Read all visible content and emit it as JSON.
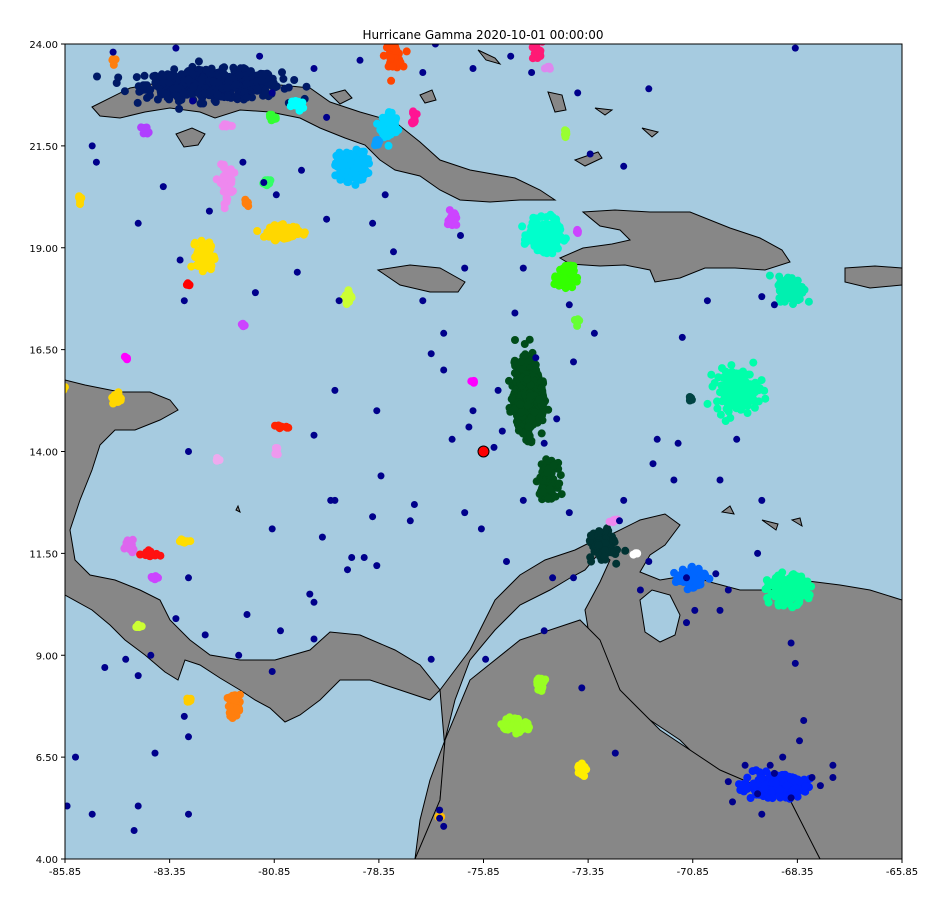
{
  "title": "Hurricane Gamma 2020-10-01 00:00:00",
  "colors": {
    "ocean": "#a6cbe0",
    "land": "#878787",
    "coast": "#000000",
    "scatter": "#00008b",
    "center_marker": "#ff0000"
  },
  "chart_data": {
    "type": "scatter",
    "title": "Hurricane Gamma 2020-10-01 00:00:00",
    "xlim": [
      -85.85,
      -65.85
    ],
    "ylim": [
      4.0,
      24.0
    ],
    "x_ticks": [
      "-85.85",
      "-83.35",
      "-80.85",
      "-78.35",
      "-75.85",
      "-73.35",
      "-70.85",
      "-68.35",
      "-65.85"
    ],
    "y_ticks": [
      "4.00",
      "6.50",
      "9.00",
      "11.50",
      "14.00",
      "16.50",
      "19.00",
      "21.50",
      "24.00"
    ],
    "hurricane_center": {
      "lon": -75.85,
      "lat": 14.0,
      "color": "#ff0000"
    },
    "scatter_points": [
      [
        -84.7,
        23.8
      ],
      [
        -83.2,
        23.9
      ],
      [
        -81.2,
        23.7
      ],
      [
        -79.6,
        22.2
      ],
      [
        -77.3,
        23.3
      ],
      [
        -76.1,
        23.4
      ],
      [
        -73.6,
        22.8
      ],
      [
        -71.9,
        22.9
      ],
      [
        -73.3,
        21.3
      ],
      [
        -72.5,
        21.0
      ],
      [
        -85.2,
        21.5
      ],
      [
        -85.1,
        21.1
      ],
      [
        -84.1,
        19.6
      ],
      [
        -83.1,
        18.7
      ],
      [
        -82.4,
        19.9
      ],
      [
        -80.8,
        20.3
      ],
      [
        -80.2,
        20.9
      ],
      [
        -79.6,
        19.7
      ],
      [
        -81.6,
        21.1
      ],
      [
        -81.1,
        20.6
      ],
      [
        -78.5,
        19.6
      ],
      [
        -78.2,
        20.3
      ],
      [
        -78.0,
        18.9
      ],
      [
        -76.4,
        19.3
      ],
      [
        -76.3,
        18.5
      ],
      [
        -77.3,
        17.7
      ],
      [
        -79.3,
        17.7
      ],
      [
        -80.3,
        18.4
      ],
      [
        -81.3,
        17.9
      ],
      [
        -83.0,
        17.7
      ],
      [
        -79.4,
        15.5
      ],
      [
        -78.4,
        15.0
      ],
      [
        -77.1,
        16.4
      ],
      [
        -78.3,
        13.4
      ],
      [
        -77.5,
        12.7
      ],
      [
        -78.5,
        12.4
      ],
      [
        -79.5,
        12.8
      ],
      [
        -79.7,
        11.9
      ],
      [
        -80.9,
        12.1
      ],
      [
        -77.6,
        12.3
      ],
      [
        -76.1,
        15.0
      ],
      [
        -75.5,
        15.5
      ],
      [
        -76.2,
        14.6
      ],
      [
        -76.6,
        14.3
      ],
      [
        -75.4,
        14.5
      ],
      [
        -75.6,
        14.1
      ],
      [
        -74.4,
        14.2
      ],
      [
        -74.1,
        14.8
      ],
      [
        -73.7,
        16.2
      ],
      [
        -74.6,
        16.3
      ],
      [
        -76.8,
        16.0
      ],
      [
        -76.8,
        16.9
      ],
      [
        -75.1,
        17.4
      ],
      [
        -74.9,
        18.5
      ],
      [
        -73.8,
        17.6
      ],
      [
        -73.2,
        16.9
      ],
      [
        -71.1,
        16.8
      ],
      [
        -70.5,
        17.7
      ],
      [
        -69.2,
        17.8
      ],
      [
        -68.9,
        17.6
      ],
      [
        -71.7,
        14.3
      ],
      [
        -69.8,
        14.3
      ],
      [
        -71.2,
        14.2
      ],
      [
        -70.2,
        13.3
      ],
      [
        -71.8,
        13.7
      ],
      [
        -71.3,
        13.3
      ],
      [
        -72.5,
        12.8
      ],
      [
        -72.6,
        12.3
      ],
      [
        -73.8,
        12.5
      ],
      [
        -69.2,
        12.8
      ],
      [
        -79.9,
        14.4
      ],
      [
        -82.9,
        14.0
      ],
      [
        -82.9,
        10.9
      ],
      [
        -82.5,
        9.5
      ],
      [
        -81.7,
        9.0
      ],
      [
        -81.5,
        10.0
      ],
      [
        -80.7,
        9.6
      ],
      [
        -80.0,
        10.5
      ],
      [
        -79.4,
        12.8
      ],
      [
        -79.1,
        11.1
      ],
      [
        -78.7,
        11.4
      ],
      [
        -78.4,
        11.2
      ],
      [
        -79.0,
        11.4
      ],
      [
        -79.9,
        10.3
      ],
      [
        -79.9,
        9.4
      ],
      [
        -80.9,
        8.6
      ],
      [
        -84.9,
        8.7
      ],
      [
        -84.1,
        8.5
      ],
      [
        -83.2,
        9.9
      ],
      [
        -83.8,
        9.0
      ],
      [
        -84.4,
        8.9
      ],
      [
        -83.0,
        7.5
      ],
      [
        -82.9,
        7.0
      ],
      [
        -83.7,
        6.6
      ],
      [
        -85.6,
        6.5
      ],
      [
        -85.8,
        5.3
      ],
      [
        -85.2,
        5.1
      ],
      [
        -84.1,
        5.3
      ],
      [
        -84.2,
        4.7
      ],
      [
        -82.9,
        5.1
      ],
      [
        -77.1,
        8.9
      ],
      [
        -75.8,
        8.9
      ],
      [
        -74.9,
        12.8
      ],
      [
        -75.3,
        11.3
      ],
      [
        -74.2,
        10.9
      ],
      [
        -73.7,
        10.9
      ],
      [
        -74.4,
        9.6
      ],
      [
        -73.5,
        8.2
      ],
      [
        -72.7,
        6.6
      ],
      [
        -72.1,
        10.6
      ],
      [
        -70.8,
        10.1
      ],
      [
        -71.0,
        9.8
      ],
      [
        -70.2,
        10.1
      ],
      [
        -71.0,
        10.9
      ],
      [
        -70.3,
        11.0
      ],
      [
        -69.3,
        11.5
      ],
      [
        -70.0,
        10.6
      ],
      [
        -71.9,
        11.3
      ],
      [
        -68.5,
        9.3
      ],
      [
        -68.4,
        8.8
      ],
      [
        -68.2,
        7.4
      ],
      [
        -68.3,
        6.9
      ],
      [
        -68.7,
        6.5
      ],
      [
        -68.9,
        6.1
      ],
      [
        -69.6,
        6.3
      ],
      [
        -70.0,
        5.9
      ],
      [
        -68.0,
        6.0
      ],
      [
        -67.8,
        5.8
      ],
      [
        -69.3,
        5.6
      ],
      [
        -69.9,
        5.4
      ],
      [
        -67.5,
        6.0
      ],
      [
        -67.5,
        6.3
      ],
      [
        -69.2,
        5.1
      ],
      [
        -68.5,
        5.5
      ],
      [
        -69.0,
        6.3
      ],
      [
        -76.9,
        5.0
      ],
      [
        -76.9,
        5.2
      ],
      [
        -76.8,
        4.8
      ],
      [
        -75.9,
        12.1
      ],
      [
        -76.3,
        12.5
      ],
      [
        -85.9,
        24.1
      ],
      [
        -68.4,
        23.9
      ],
      [
        -77.0,
        24.0
      ],
      [
        -75.2,
        23.7
      ],
      [
        -74.7,
        23.3
      ],
      [
        -83.5,
        20.5
      ],
      [
        -82.8,
        22.6
      ],
      [
        -80.9,
        22.8
      ],
      [
        -79.9,
        23.4
      ],
      [
        -78.8,
        23.6
      ]
    ],
    "clusters": [
      {
        "color": "#001a66",
        "lon": -82.3,
        "lat": 23.0,
        "sx": 1.6,
        "sy": 0.35,
        "n": 520
      },
      {
        "color": "#ff4500",
        "lon": -78.0,
        "lat": 23.7,
        "sx": 0.2,
        "sy": 0.3,
        "n": 40
      },
      {
        "color": "#ff7f0e",
        "lon": -84.7,
        "lat": 23.6,
        "sx": 0.05,
        "sy": 0.1,
        "n": 6
      },
      {
        "color": "#ff1a75",
        "lon": -74.6,
        "lat": 23.8,
        "sx": 0.15,
        "sy": 0.25,
        "n": 20
      },
      {
        "color": "#dd88ee",
        "lon": -74.3,
        "lat": 23.4,
        "sx": 0.08,
        "sy": 0.05,
        "n": 6
      },
      {
        "color": "#00ffff",
        "lon": -80.3,
        "lat": 22.5,
        "sx": 0.15,
        "sy": 0.15,
        "n": 20
      },
      {
        "color": "#33ff33",
        "lon": -80.9,
        "lat": 22.2,
        "sx": 0.1,
        "sy": 0.15,
        "n": 15
      },
      {
        "color": "#00d5ff",
        "lon": -78.1,
        "lat": 22.0,
        "sx": 0.2,
        "sy": 0.35,
        "n": 70
      },
      {
        "color": "#0aa0ff",
        "lon": -78.4,
        "lat": 21.6,
        "sx": 0.05,
        "sy": 0.1,
        "n": 10
      },
      {
        "color": "#ff1493",
        "lon": -77.5,
        "lat": 22.2,
        "sx": 0.05,
        "sy": 0.2,
        "n": 10
      },
      {
        "color": "#b040ff",
        "lon": -83.9,
        "lat": 21.9,
        "sx": 0.1,
        "sy": 0.1,
        "n": 10
      },
      {
        "color": "#ee88ee",
        "lon": -82.0,
        "lat": 22.0,
        "sx": 0.15,
        "sy": 0.05,
        "n": 6
      },
      {
        "color": "#99ff33",
        "lon": -73.9,
        "lat": 21.8,
        "sx": 0.05,
        "sy": 0.15,
        "n": 8
      },
      {
        "color": "#00bfff",
        "lon": -79.0,
        "lat": 21.0,
        "sx": 0.35,
        "sy": 0.35,
        "n": 220
      },
      {
        "color": "#ffd700",
        "lon": -85.5,
        "lat": 20.2,
        "sx": 0.05,
        "sy": 0.15,
        "n": 6
      },
      {
        "color": "#ee88ee",
        "lon": -82.0,
        "lat": 20.6,
        "sx": 0.15,
        "sy": 0.4,
        "n": 60
      },
      {
        "color": "#ff7f0e",
        "lon": -81.5,
        "lat": 20.1,
        "sx": 0.05,
        "sy": 0.1,
        "n": 6
      },
      {
        "color": "#33ff66",
        "lon": -81.0,
        "lat": 20.6,
        "sx": 0.1,
        "sy": 0.08,
        "n": 20
      },
      {
        "color": "#ffd700",
        "lon": -80.6,
        "lat": 19.4,
        "sx": 0.35,
        "sy": 0.15,
        "n": 120
      },
      {
        "color": "#cc44ff",
        "lon": -76.6,
        "lat": 19.7,
        "sx": 0.1,
        "sy": 0.2,
        "n": 25
      },
      {
        "color": "#00ffcc",
        "lon": -74.4,
        "lat": 19.3,
        "sx": 0.35,
        "sy": 0.35,
        "n": 260
      },
      {
        "color": "#cc44ff",
        "lon": -73.6,
        "lat": 19.4,
        "sx": 0.05,
        "sy": 0.05,
        "n": 5
      },
      {
        "color": "#33ff00",
        "lon": -73.9,
        "lat": 18.3,
        "sx": 0.2,
        "sy": 0.25,
        "n": 100
      },
      {
        "color": "#ffe000",
        "lon": -82.5,
        "lat": 18.8,
        "sx": 0.2,
        "sy": 0.35,
        "n": 90
      },
      {
        "color": "#ff0000",
        "lon": -82.9,
        "lat": 18.1,
        "sx": 0.05,
        "sy": 0.05,
        "n": 4
      },
      {
        "color": "#ccff33",
        "lon": -79.1,
        "lat": 17.8,
        "sx": 0.1,
        "sy": 0.15,
        "n": 20
      },
      {
        "color": "#cc44ff",
        "lon": -81.6,
        "lat": 17.1,
        "sx": 0.05,
        "sy": 0.05,
        "n": 6
      },
      {
        "color": "#66ff33",
        "lon": -73.6,
        "lat": 17.2,
        "sx": 0.05,
        "sy": 0.1,
        "n": 6
      },
      {
        "color": "#00f0b0",
        "lon": -68.5,
        "lat": 18.0,
        "sx": 0.3,
        "sy": 0.3,
        "n": 160
      },
      {
        "color": "#00ffaa",
        "lon": -69.8,
        "lat": 15.5,
        "sx": 0.5,
        "sy": 0.5,
        "n": 180
      },
      {
        "color": "#ff00ff",
        "lon": -84.4,
        "lat": 16.3,
        "sx": 0.05,
        "sy": 0.05,
        "n": 4
      },
      {
        "color": "#ffd700",
        "lon": -84.6,
        "lat": 15.3,
        "sx": 0.1,
        "sy": 0.15,
        "n": 30
      },
      {
        "color": "#ffd700",
        "lon": -85.9,
        "lat": 15.6,
        "sx": 0.05,
        "sy": 0.1,
        "n": 5
      },
      {
        "color": "#ff00ff",
        "lon": -76.1,
        "lat": 15.7,
        "sx": 0.05,
        "sy": 0.05,
        "n": 4
      },
      {
        "color": "#ff2200",
        "lon": -80.7,
        "lat": 14.6,
        "sx": 0.15,
        "sy": 0.05,
        "n": 10
      },
      {
        "color": "#ee99ee",
        "lon": -80.8,
        "lat": 14.0,
        "sx": 0.05,
        "sy": 0.1,
        "n": 6
      },
      {
        "color": "#eeaaee",
        "lon": -82.2,
        "lat": 13.8,
        "sx": 0.05,
        "sy": 0.05,
        "n": 4
      },
      {
        "color": "#004d1a",
        "lon": -74.8,
        "lat": 15.4,
        "sx": 0.3,
        "sy": 0.75,
        "n": 900
      },
      {
        "color": "#004d1a",
        "lon": -74.3,
        "lat": 13.3,
        "sx": 0.2,
        "sy": 0.4,
        "n": 140
      },
      {
        "color": "#003333",
        "lon": -73.0,
        "lat": 11.7,
        "sx": 0.25,
        "sy": 0.3,
        "n": 200
      },
      {
        "color": "#004444",
        "lon": -70.9,
        "lat": 15.3,
        "sx": 0.05,
        "sy": 0.1,
        "n": 6
      },
      {
        "color": "#ee88ee",
        "lon": -72.7,
        "lat": 12.3,
        "sx": 0.1,
        "sy": 0.05,
        "n": 6
      },
      {
        "color": "#ffffff",
        "lon": -72.2,
        "lat": 11.5,
        "sx": 0.05,
        "sy": 0.05,
        "n": 4
      },
      {
        "color": "#0066ff",
        "lon": -70.9,
        "lat": 10.9,
        "sx": 0.35,
        "sy": 0.2,
        "n": 110
      },
      {
        "color": "#00ff99",
        "lon": -68.6,
        "lat": 10.6,
        "sx": 0.45,
        "sy": 0.35,
        "n": 170
      },
      {
        "color": "#dd66ee",
        "lon": -84.3,
        "lat": 11.7,
        "sx": 0.15,
        "sy": 0.15,
        "n": 25
      },
      {
        "color": "#ffdd00",
        "lon": -83.0,
        "lat": 11.8,
        "sx": 0.15,
        "sy": 0.05,
        "n": 12
      },
      {
        "color": "#ff1111",
        "lon": -83.8,
        "lat": 11.5,
        "sx": 0.2,
        "sy": 0.08,
        "n": 14
      },
      {
        "color": "#cc44ff",
        "lon": -83.7,
        "lat": 10.9,
        "sx": 0.1,
        "sy": 0.07,
        "n": 8
      },
      {
        "color": "#ccff33",
        "lon": -84.1,
        "lat": 9.7,
        "sx": 0.07,
        "sy": 0.05,
        "n": 8
      },
      {
        "color": "#ffcc00",
        "lon": -82.9,
        "lat": 7.9,
        "sx": 0.07,
        "sy": 0.05,
        "n": 8
      },
      {
        "color": "#ff7f0e",
        "lon": -81.8,
        "lat": 7.8,
        "sx": 0.15,
        "sy": 0.25,
        "n": 60
      },
      {
        "color": "#99ff22",
        "lon": -74.5,
        "lat": 8.3,
        "sx": 0.1,
        "sy": 0.15,
        "n": 25
      },
      {
        "color": "#99ff22",
        "lon": -75.1,
        "lat": 7.3,
        "sx": 0.3,
        "sy": 0.15,
        "n": 100
      },
      {
        "color": "#ffee00",
        "lon": -73.5,
        "lat": 6.2,
        "sx": 0.1,
        "sy": 0.15,
        "n": 25
      },
      {
        "color": "#ffbb00",
        "lon": -76.9,
        "lat": 5.0,
        "sx": 0.05,
        "sy": 0.05,
        "n": 6
      },
      {
        "color": "#0022ff",
        "lon": -68.9,
        "lat": 5.8,
        "sx": 0.7,
        "sy": 0.25,
        "n": 320
      }
    ]
  }
}
